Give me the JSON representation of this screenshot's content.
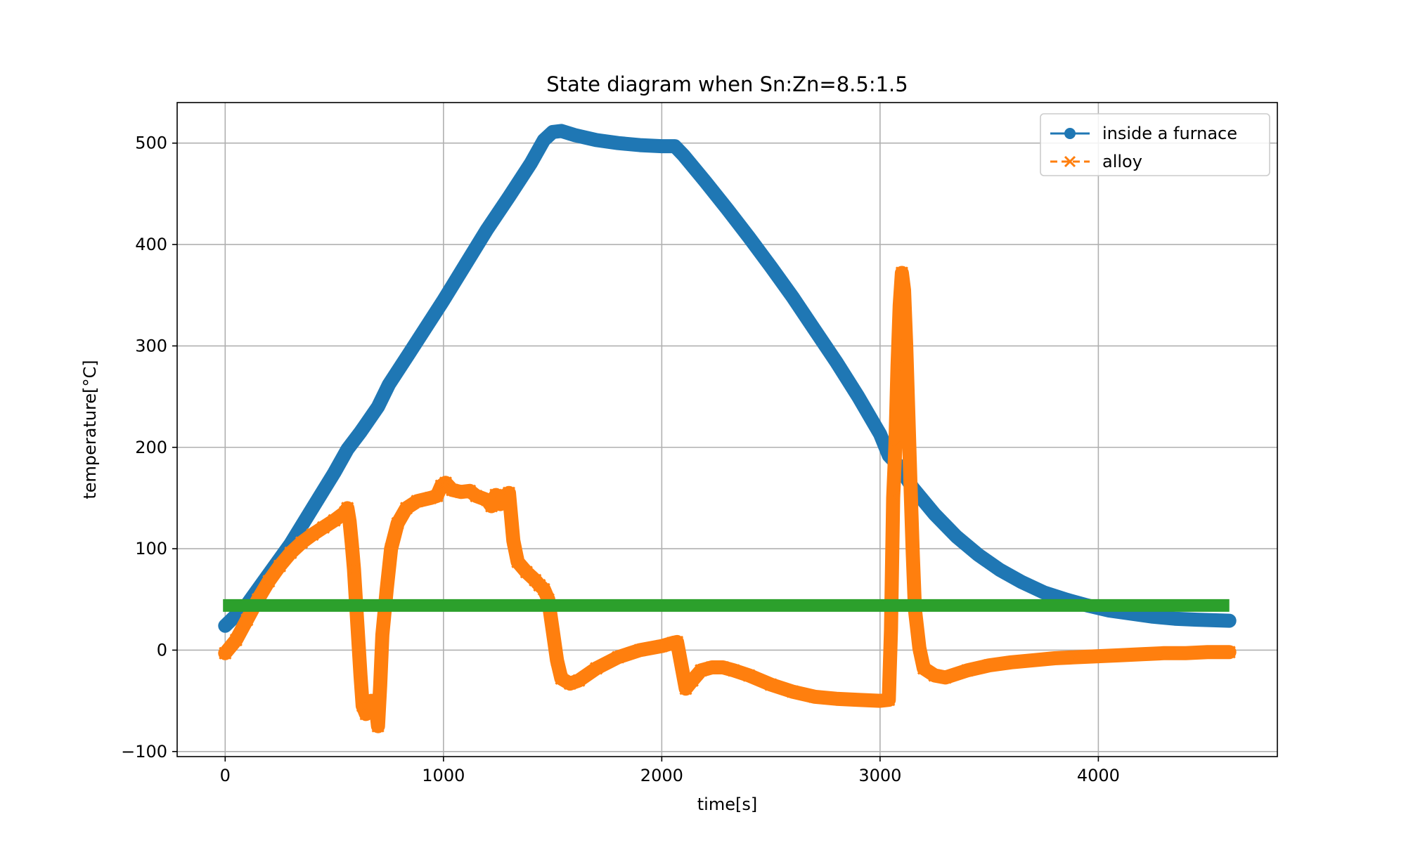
{
  "chart_data": {
    "type": "line",
    "title": "State diagram when Sn:Zn=8.5:1.5",
    "xlabel": "time[s]",
    "ylabel": "temperature[°C]",
    "xlim": [
      -220,
      4820
    ],
    "ylim": [
      -105,
      540
    ],
    "x_ticks": [
      0,
      1000,
      2000,
      3000,
      4000
    ],
    "x_tick_labels": [
      "0",
      "1000",
      "2000",
      "3000",
      "4000"
    ],
    "y_ticks": [
      -100,
      0,
      100,
      200,
      300,
      400,
      500
    ],
    "y_tick_labels": [
      "−100",
      "0",
      "100",
      "200",
      "300",
      "400",
      "500"
    ],
    "grid": true,
    "legend_position": "top-right",
    "series": [
      {
        "name": "inside a furnace",
        "color": "#1f77b4",
        "marker": "circle",
        "line_style": "solid",
        "points": [
          [
            0,
            24
          ],
          [
            100,
            45
          ],
          [
            200,
            75
          ],
          [
            300,
            105
          ],
          [
            400,
            140
          ],
          [
            500,
            175
          ],
          [
            560,
            198
          ],
          [
            620,
            215
          ],
          [
            700,
            240
          ],
          [
            750,
            262
          ],
          [
            850,
            295
          ],
          [
            1000,
            345
          ],
          [
            1100,
            380
          ],
          [
            1200,
            415
          ],
          [
            1300,
            447
          ],
          [
            1400,
            480
          ],
          [
            1460,
            503
          ],
          [
            1500,
            511
          ],
          [
            1540,
            512
          ],
          [
            1600,
            508
          ],
          [
            1700,
            503
          ],
          [
            1800,
            500
          ],
          [
            1900,
            498
          ],
          [
            2000,
            497
          ],
          [
            2060,
            497
          ],
          [
            2100,
            488
          ],
          [
            2200,
            462
          ],
          [
            2300,
            435
          ],
          [
            2400,
            407
          ],
          [
            2500,
            378
          ],
          [
            2600,
            348
          ],
          [
            2700,
            316
          ],
          [
            2800,
            284
          ],
          [
            2900,
            250
          ],
          [
            3000,
            213
          ],
          [
            3040,
            192
          ],
          [
            3080,
            183
          ],
          [
            3150,
            160
          ],
          [
            3250,
            134
          ],
          [
            3350,
            112
          ],
          [
            3450,
            94
          ],
          [
            3550,
            79
          ],
          [
            3650,
            67
          ],
          [
            3750,
            57
          ],
          [
            3850,
            50
          ],
          [
            3950,
            44
          ],
          [
            4050,
            39
          ],
          [
            4150,
            36
          ],
          [
            4250,
            33
          ],
          [
            4350,
            31
          ],
          [
            4450,
            30
          ],
          [
            4600,
            29
          ]
        ]
      },
      {
        "name": "alloy",
        "color": "#ff7f0e",
        "marker": "x",
        "line_style": "dashed",
        "points": [
          [
            0,
            -3
          ],
          [
            50,
            10
          ],
          [
            100,
            30
          ],
          [
            150,
            50
          ],
          [
            200,
            68
          ],
          [
            250,
            83
          ],
          [
            300,
            96
          ],
          [
            350,
            106
          ],
          [
            400,
            114
          ],
          [
            450,
            121
          ],
          [
            500,
            128
          ],
          [
            550,
            136
          ],
          [
            560,
            140
          ],
          [
            570,
            127
          ],
          [
            580,
            105
          ],
          [
            590,
            80
          ],
          [
            600,
            45
          ],
          [
            610,
            10
          ],
          [
            620,
            -25
          ],
          [
            630,
            -55
          ],
          [
            645,
            -63
          ],
          [
            660,
            -58
          ],
          [
            670,
            -50
          ],
          [
            690,
            -55
          ],
          [
            700,
            -75
          ],
          [
            710,
            -35
          ],
          [
            720,
            15
          ],
          [
            740,
            60
          ],
          [
            760,
            100
          ],
          [
            790,
            125
          ],
          [
            830,
            140
          ],
          [
            880,
            147
          ],
          [
            940,
            150
          ],
          [
            970,
            152
          ],
          [
            990,
            162
          ],
          [
            1010,
            165
          ],
          [
            1040,
            158
          ],
          [
            1080,
            156
          ],
          [
            1120,
            157
          ],
          [
            1150,
            152
          ],
          [
            1200,
            148
          ],
          [
            1220,
            142
          ],
          [
            1240,
            153
          ],
          [
            1260,
            144
          ],
          [
            1280,
            152
          ],
          [
            1300,
            155
          ],
          [
            1320,
            108
          ],
          [
            1340,
            87
          ],
          [
            1380,
            77
          ],
          [
            1420,
            69
          ],
          [
            1440,
            64
          ],
          [
            1460,
            60
          ],
          [
            1480,
            50
          ],
          [
            1500,
            20
          ],
          [
            1520,
            -10
          ],
          [
            1540,
            -28
          ],
          [
            1580,
            -33
          ],
          [
            1620,
            -30
          ],
          [
            1700,
            -18
          ],
          [
            1800,
            -7
          ],
          [
            1900,
            0
          ],
          [
            2000,
            4
          ],
          [
            2050,
            7
          ],
          [
            2070,
            8
          ],
          [
            2090,
            -15
          ],
          [
            2110,
            -38
          ],
          [
            2140,
            -30
          ],
          [
            2180,
            -20
          ],
          [
            2230,
            -17
          ],
          [
            2280,
            -17
          ],
          [
            2330,
            -20
          ],
          [
            2400,
            -25
          ],
          [
            2500,
            -34
          ],
          [
            2600,
            -41
          ],
          [
            2700,
            -46
          ],
          [
            2800,
            -48
          ],
          [
            2900,
            -49
          ],
          [
            3000,
            -50
          ],
          [
            3040,
            -49
          ],
          [
            3050,
            20
          ],
          [
            3060,
            150
          ],
          [
            3070,
            200
          ],
          [
            3080,
            280
          ],
          [
            3090,
            340
          ],
          [
            3100,
            372
          ],
          [
            3110,
            355
          ],
          [
            3120,
            300
          ],
          [
            3130,
            230
          ],
          [
            3140,
            160
          ],
          [
            3150,
            95
          ],
          [
            3160,
            40
          ],
          [
            3180,
            2
          ],
          [
            3200,
            -18
          ],
          [
            3250,
            -25
          ],
          [
            3300,
            -27
          ],
          [
            3400,
            -20
          ],
          [
            3500,
            -15
          ],
          [
            3600,
            -12
          ],
          [
            3700,
            -10
          ],
          [
            3800,
            -8
          ],
          [
            3900,
            -7
          ],
          [
            4000,
            -6
          ],
          [
            4100,
            -5
          ],
          [
            4200,
            -4
          ],
          [
            4300,
            -3
          ],
          [
            4400,
            -3
          ],
          [
            4500,
            -2
          ],
          [
            4600,
            -2
          ]
        ]
      },
      {
        "color": "#2ca02c",
        "marker": "none",
        "line_style": "solid",
        "points": [
          [
            -10,
            44
          ],
          [
            4600,
            44
          ]
        ]
      }
    ]
  }
}
